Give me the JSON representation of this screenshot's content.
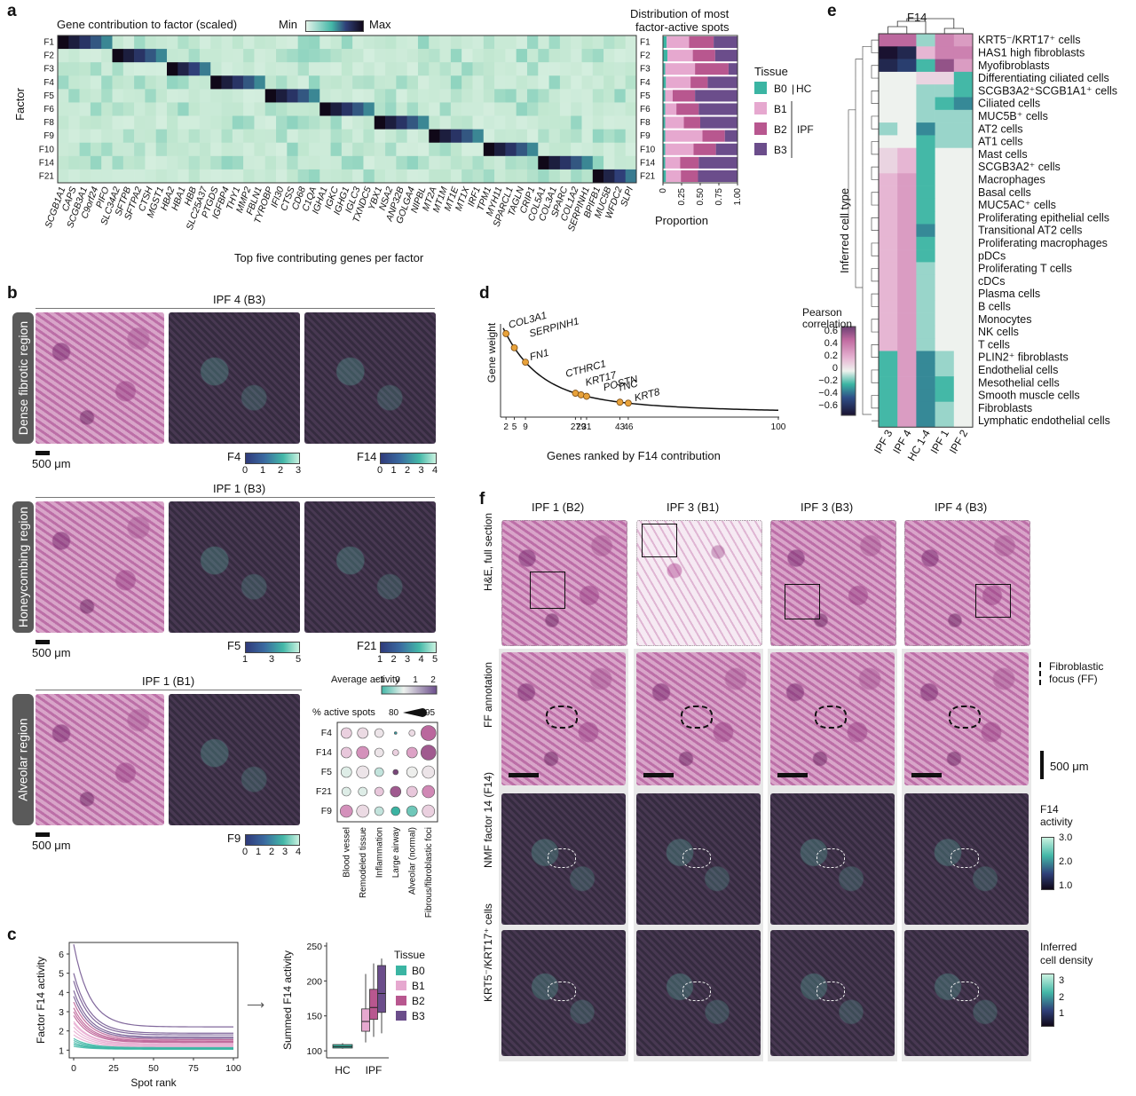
{
  "panels": {
    "a": "a",
    "b": "b",
    "c": "c",
    "d": "d",
    "e": "e",
    "f": "f"
  },
  "colors": {
    "heat_low": "#e4f4ea",
    "heat_mid": "#43b7a7",
    "heat_high": "#100818",
    "B0": "#3bb5a3",
    "B1": "#e6a8cf",
    "B2": "#b8578f",
    "B3": "#6b4d8b"
  },
  "a": {
    "title": "Gene contribution to factor (scaled)",
    "scale_min": "Min",
    "scale_max": "Max",
    "ylabel": "Factor",
    "xlabel": "Top five contributing genes per factor",
    "factors": [
      "F1",
      "F2",
      "F3",
      "F4",
      "F5",
      "F6",
      "F8",
      "F9",
      "F10",
      "F14",
      "F21"
    ],
    "genes": [
      "SCGB1A1",
      "CAPS",
      "SCGB3A1",
      "C9orf24",
      "PIFO",
      "SLC34A2",
      "SFTPB",
      "SFTPA2",
      "CTSH",
      "MGST1",
      "HBA2",
      "HBA1",
      "HBB",
      "SLC25A37",
      "PTGDS",
      "IGFBP4",
      "THY1",
      "MMP2",
      "FBLN1",
      "TYROBP",
      "IFI30",
      "CTSS",
      "CD68",
      "C1QA",
      "IGHA1",
      "IGKC",
      "IGHG1",
      "IGLC3",
      "TXNDC5",
      "YBX1",
      "NSA2",
      "ANP32B",
      "GOLGA4",
      "NIPBL",
      "MT2A",
      "MT1M",
      "MT1E",
      "MT1X",
      "IRF1",
      "TPM1",
      "MYH11",
      "SPARCL1",
      "TAGLN",
      "CRIP1",
      "COL5A1",
      "COL3A1",
      "SPARC",
      "COL1A2",
      "SERPINH1",
      "BPIFB1",
      "MUC5B",
      "WFDC2",
      "SLPI"
    ],
    "dist_title_1": "Distribution of most",
    "dist_title_2": "factor-active spots",
    "dist_xlabel": "Proportion",
    "dist_ticks": [
      "0",
      "0.25",
      "0.50",
      "0.75",
      "1.00"
    ],
    "tissue_title": "Tissue",
    "tissue": [
      "B0",
      "B1",
      "B2",
      "B3"
    ],
    "hc": "HC",
    "ipf": "IPF",
    "proportions": [
      [
        0.05,
        0.3,
        0.33,
        0.32
      ],
      [
        0.06,
        0.34,
        0.3,
        0.3
      ],
      [
        0.03,
        0.4,
        0.45,
        0.12
      ],
      [
        0.04,
        0.33,
        0.23,
        0.4
      ],
      [
        0.03,
        0.1,
        0.3,
        0.57
      ],
      [
        0.03,
        0.15,
        0.3,
        0.52
      ],
      [
        0.03,
        0.25,
        0.22,
        0.5
      ],
      [
        0.03,
        0.5,
        0.3,
        0.17
      ],
      [
        0.03,
        0.38,
        0.3,
        0.29
      ],
      [
        0.03,
        0.2,
        0.25,
        0.52
      ],
      [
        0.04,
        0.2,
        0.23,
        0.53
      ]
    ]
  },
  "b": {
    "sections": [
      {
        "title": "IPF 4 (B3)",
        "region": "Dense fibrotic region",
        "cbar1": "F4",
        "ticks1": [
          "0",
          "1",
          "2",
          "3"
        ],
        "cbar2": "F14",
        "ticks2": [
          "0",
          "1",
          "2",
          "3",
          "4"
        ],
        "scale": "500 μm"
      },
      {
        "title": "IPF 1 (B3)",
        "region": "Honeycombing region",
        "cbar1": "F5",
        "ticks1": [
          "1",
          "3",
          "5"
        ],
        "cbar2": "F21",
        "ticks2": [
          "1",
          "2",
          "3",
          "4",
          "5"
        ],
        "scale": "500 μm"
      },
      {
        "title": "IPF 1 (B1)",
        "region": "Alveolar region",
        "cbar1": "F9",
        "ticks1": [
          "0",
          "1",
          "2",
          "3",
          "4"
        ],
        "scale": "500 μm"
      }
    ],
    "dot_avg_title": "Average activity",
    "dot_avg_ticks": [
      "−1",
      "0",
      "1",
      "2"
    ],
    "dot_pct_title": "% active spots",
    "dot_pct_min": "80",
    "dot_pct_max": "95",
    "dot_rows": [
      "F4",
      "F14",
      "F5",
      "F21",
      "F9"
    ],
    "dot_cols": [
      "Blood vessel",
      "Remodeled tissue",
      "Inflammation",
      "Large airway",
      "Alveolar (normal)",
      "Fibrous/fibroblastic foci"
    ],
    "dot_values": [
      [
        0.2,
        0.1,
        0.0,
        -1.0,
        0.1,
        1.4
      ],
      [
        0.3,
        0.9,
        0.0,
        0.2,
        0.7,
        1.6
      ],
      [
        -0.2,
        0.0,
        -0.3,
        1.9,
        -0.1,
        0.0
      ],
      [
        -0.2,
        -0.2,
        0.3,
        1.6,
        0.3,
        1.0
      ],
      [
        0.9,
        0.1,
        -0.3,
        -0.8,
        -0.6,
        0.2
      ]
    ],
    "dot_pcts": [
      [
        90,
        90,
        88,
        80,
        85,
        95
      ],
      [
        90,
        92,
        88,
        85,
        90,
        95
      ],
      [
        90,
        92,
        88,
        84,
        90,
        92
      ],
      [
        88,
        88,
        88,
        90,
        90,
        92
      ],
      [
        92,
        92,
        88,
        88,
        90,
        92
      ]
    ]
  },
  "c": {
    "ylabel": "Factor F14 activity",
    "xlabel": "Spot rank",
    "xticks": [
      "0",
      "25",
      "50",
      "75",
      "100"
    ],
    "yticks": [
      "1",
      "2",
      "3",
      "4",
      "5",
      "6"
    ],
    "box_ylabel": "Summed F14 activity",
    "box_yticks": [
      "100",
      "150",
      "200",
      "250"
    ],
    "box_xticks": [
      "HC",
      "IPF"
    ],
    "tissue_title": "Tissue",
    "tissue": [
      "B0",
      "B1",
      "B2",
      "B3"
    ],
    "boxes": [
      {
        "group": "B0",
        "q1": 104,
        "median": 106,
        "q3": 109,
        "min": 103,
        "max": 111
      },
      {
        "group": "B1",
        "q1": 128,
        "median": 142,
        "q3": 160,
        "min": 112,
        "max": 210
      },
      {
        "group": "B2",
        "q1": 145,
        "median": 162,
        "q3": 188,
        "min": 120,
        "max": 225
      },
      {
        "group": "B3",
        "q1": 155,
        "median": 182,
        "q3": 222,
        "min": 125,
        "max": 232
      }
    ]
  },
  "d": {
    "ylabel": "Gene weight",
    "xlabel": "Genes ranked by F14 contribution",
    "xticks": [
      "2",
      "5",
      "9",
      "27",
      "29",
      "31",
      "43",
      "46",
      "100"
    ],
    "labeled": [
      {
        "gene": "COL3A1",
        "rank": 2
      },
      {
        "gene": "SERPINH1",
        "rank": 5
      },
      {
        "gene": "FN1",
        "rank": 9
      },
      {
        "gene": "CTHRC1",
        "rank": 27
      },
      {
        "gene": "KRT17",
        "rank": 29
      },
      {
        "gene": "POSTN",
        "rank": 31
      },
      {
        "gene": "TNC",
        "rank": 43
      },
      {
        "gene": "KRT8",
        "rank": 46
      }
    ]
  },
  "e": {
    "top": "F14",
    "ylabel": "Inferred cell type",
    "cols": [
      "IPF 3",
      "IPF 4",
      "HC 1-4",
      "IPF 1",
      "IPF 2"
    ],
    "rows": [
      "KRT5⁻/KRT17⁺ cells",
      "HAS1 high fibroblasts",
      "Myofibroblasts",
      "Differentiating ciliated cells",
      "SCGB3A2⁺SCGB1A1⁺ cells",
      "Ciliated cells",
      "MUC5B⁺ cells",
      "AT2 cells",
      "AT1 cells",
      "Mast cells",
      "SCGB3A2⁺ cells",
      "Macrophages",
      "Basal cells",
      "MUC5AC⁺ cells",
      "Proliferating epithelial cells",
      "Transitional AT2 cells",
      "Proliferating macrophages",
      "pDCs",
      "Proliferating T cells",
      "cDCs",
      "Plasma cells",
      "B cells",
      "Monocytes",
      "NK cells",
      "T cells",
      "PLIN2⁺ fibroblasts",
      "Endothelial cells",
      "Mesothelial cells",
      "Smooth muscle cells",
      "Fibroblasts",
      "Lymphatic endothelial cells"
    ],
    "values": [
      [
        0.5,
        0.5,
        -0.1,
        0.4,
        0.3
      ],
      [
        -0.7,
        -0.6,
        0.2,
        0.4,
        0.4
      ],
      [
        -0.6,
        -0.5,
        -0.2,
        0.6,
        0.3
      ],
      [
        0.0,
        0.0,
        0.1,
        0.1,
        -0.2
      ],
      [
        0.0,
        0.0,
        -0.1,
        -0.1,
        -0.2
      ],
      [
        0.0,
        0.0,
        -0.1,
        -0.2,
        -0.3
      ],
      [
        0.0,
        0.0,
        -0.1,
        -0.1,
        -0.1
      ],
      [
        -0.1,
        0.0,
        -0.3,
        -0.1,
        -0.1
      ],
      [
        0.0,
        0.0,
        -0.2,
        -0.1,
        -0.1
      ],
      [
        0.1,
        0.2,
        -0.2,
        0.0,
        0.0
      ],
      [
        0.1,
        0.2,
        -0.2,
        0.0,
        0.0
      ],
      [
        0.2,
        0.3,
        -0.2,
        0.0,
        0.0
      ],
      [
        0.2,
        0.3,
        -0.2,
        0.0,
        0.0
      ],
      [
        0.2,
        0.3,
        -0.2,
        0.0,
        0.0
      ],
      [
        0.2,
        0.3,
        -0.2,
        0.0,
        0.0
      ],
      [
        0.2,
        0.3,
        -0.3,
        0.0,
        0.0
      ],
      [
        0.2,
        0.3,
        -0.2,
        0.0,
        0.0
      ],
      [
        0.2,
        0.3,
        -0.2,
        0.0,
        0.0
      ],
      [
        0.2,
        0.3,
        -0.1,
        0.0,
        0.0
      ],
      [
        0.2,
        0.3,
        -0.1,
        0.0,
        0.0
      ],
      [
        0.2,
        0.3,
        -0.1,
        0.0,
        0.0
      ],
      [
        0.2,
        0.3,
        -0.1,
        0.0,
        0.0
      ],
      [
        0.2,
        0.3,
        -0.1,
        0.0,
        0.0
      ],
      [
        0.2,
        0.3,
        -0.1,
        0.0,
        0.0
      ],
      [
        0.2,
        0.3,
        -0.1,
        0.0,
        0.0
      ],
      [
        -0.2,
        0.3,
        -0.3,
        -0.1,
        0.0
      ],
      [
        -0.2,
        0.3,
        -0.3,
        -0.1,
        0.0
      ],
      [
        -0.2,
        0.3,
        -0.3,
        -0.2,
        0.0
      ],
      [
        -0.2,
        0.3,
        -0.3,
        -0.2,
        0.0
      ],
      [
        -0.2,
        0.3,
        -0.3,
        -0.1,
        0.0
      ],
      [
        -0.2,
        0.3,
        -0.3,
        -0.1,
        0.0
      ]
    ],
    "cbar_title_1": "Pearson",
    "cbar_title_2": "correlation",
    "cbar_ticks": [
      "0.6",
      "0.4",
      "0.2",
      "0",
      "−0.2",
      "−0.4",
      "−0.6"
    ]
  },
  "f": {
    "cols": [
      "IPF 1 (B2)",
      "IPF 3 (B1)",
      "IPF 3 (B3)",
      "IPF 4 (B3)"
    ],
    "rows": [
      "H&E, full section",
      "FF annotation",
      "NMF factor 14 (F14)",
      "KRT5⁻/KRT17⁺ cells"
    ],
    "ff_legend_1": "Fibroblastic",
    "ff_legend_2": "focus (FF)",
    "scale": "500 μm",
    "f14_title_1": "F14",
    "f14_title_2": "activity",
    "f14_ticks": [
      "3.0",
      "2.0",
      "1.0"
    ],
    "dens_title_1": "Inferred",
    "dens_title_2": "cell density",
    "dens_ticks": [
      "3",
      "2",
      "1"
    ]
  }
}
